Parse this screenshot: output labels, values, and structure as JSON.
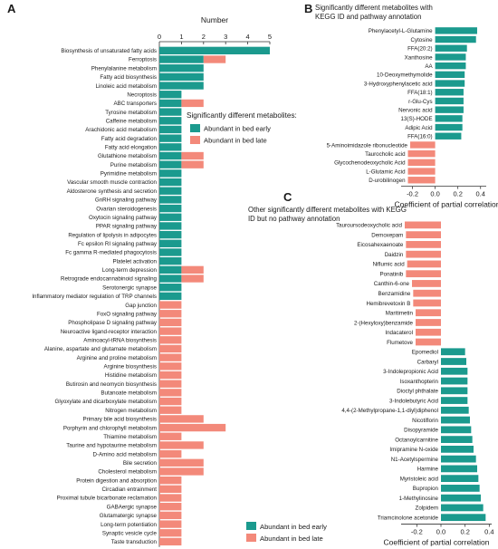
{
  "chart_data": [
    {
      "panel": "A",
      "type": "bar",
      "orientation": "horizontal",
      "stacked": true,
      "xlabel": "Number",
      "xlim": [
        0,
        5
      ],
      "xticks": [
        "0",
        "1",
        "2",
        "3",
        "4",
        "5"
      ],
      "categories": [
        "Biosynthesis of unsaturated fatty acids",
        "Ferroptosis",
        "Phenylalanine metabolism",
        "Fatty acid biosynthesis",
        "Linoleic acid metabolism",
        "Necroptosis",
        "ABC transporters",
        "Tyrosine metabolism",
        "Caffeine metabolism",
        "Arachidonic acid metabolism",
        "Fatty acid degradation",
        "Fatty acid elongation",
        "Glutathione metabolism",
        "Purine metabolism",
        "Pyrimidine metabolism",
        "Vascular smooth muscle contraction",
        "Aldosterone synthesis and secretion",
        "GnRH signaling pathway",
        "Ovarian steroidogenesis",
        "Oxytocin signaling pathway",
        "PPAR signaling pathway",
        "Regulation of lipolysis in adipocytes",
        "Fc epsilon RI signaling pathway",
        "Fc gamma R-mediated phagocytosis",
        "Platelet activation",
        "Long-term depression",
        "Retrograde endocannabinoid signaling",
        "Serotonergic synapse",
        "Inflammatory mediator regulation of TRP channels",
        "Gap junction",
        "FoxO signaling pathway",
        "Phospholipase D signaling pathway",
        "Neuroactive ligand-receptor interaction",
        "Aminoacyl-tRNA biosynthesis",
        "Alanine, aspartate and glutamate metabolism",
        "Arginine and proline metabolism",
        "Arginine biosynthesis",
        "Histidine metabolism",
        "Butirosin and neomycin biosynthesis",
        "Butanoate metabolism",
        "Glyoxylate and dicarboxylate metabolism",
        "Nitrogen metabolism",
        "Primary bile acid biosynthesis",
        "Porphyrin and chlorophyll metabolism",
        "Thiamine metabolism",
        "Taurine and hypotaurine metabolism",
        "D-Amino acid metabolism",
        "Bile secretion",
        "Cholesterol metabolism",
        "Protein digestion and absorption",
        "Circadian entrainment",
        "Proximal tubule bicarbonate reclamation",
        "GABAergic synapse",
        "Glutamatergic synapse",
        "Long-term potentiation",
        "Synaptic vesicle cycle",
        "Taste transduction"
      ],
      "series": [
        {
          "name": "Abundant in bed early",
          "values": [
            5,
            2,
            2,
            2,
            2,
            1,
            1,
            1,
            1,
            1,
            1,
            1,
            1,
            1,
            1,
            1,
            1,
            1,
            1,
            1,
            1,
            1,
            1,
            1,
            1,
            1,
            1,
            1,
            1,
            0,
            0,
            0,
            0,
            0,
            0,
            0,
            0,
            0,
            0,
            0,
            0,
            0,
            0,
            0,
            0,
            0,
            0,
            0,
            0,
            0,
            0,
            0,
            0,
            0,
            0,
            0,
            0
          ]
        },
        {
          "name": "Abundant in bed late",
          "values": [
            0,
            1,
            0,
            0,
            0,
            0,
            1,
            0,
            0,
            0,
            0,
            0,
            1,
            1,
            0,
            0,
            0,
            0,
            0,
            0,
            0,
            0,
            0,
            0,
            0,
            1,
            1,
            0,
            0,
            1,
            1,
            1,
            1,
            1,
            1,
            1,
            1,
            1,
            1,
            1,
            1,
            1,
            2,
            3,
            1,
            2,
            1,
            2,
            2,
            1,
            1,
            1,
            1,
            1,
            1,
            1,
            1
          ]
        }
      ],
      "legend": {
        "title": "Significantly different metabolites:",
        "entries": [
          "Abundant in bed early",
          "Abundant in bed late"
        ],
        "placement": "right"
      }
    },
    {
      "panel": "B",
      "type": "bar",
      "orientation": "horizontal",
      "title": "Significantly different metabolites with KEGG ID and pathway annotation",
      "xlabel": "Coefficient of partial correlation",
      "xlim": [
        -0.3,
        0.45
      ],
      "xticks": [
        "-0.2",
        "0.0",
        "0.2",
        "0.4"
      ],
      "categories": [
        "Phenylacetyl-L-Glutamine",
        "Cytosine",
        "FFA(20:2)",
        "Xanthosine",
        "AA",
        "10-Deoxymethymolide",
        "3-Hydroxyphenylacetic acid",
        "FFA(18:1)",
        "r-Glu-Cys",
        "Nervonic acid",
        "13(S)-HODE",
        "Adipic Acid",
        "FFA(16:0)",
        "5-Aminoimidazole ribonucleotide",
        "Taurocholic acid",
        "Glycochenodeoxycholic Acid",
        "L-Glutamic Acid",
        "D-urobilinogen"
      ],
      "values": [
        0.37,
        0.36,
        0.28,
        0.27,
        0.27,
        0.26,
        0.26,
        0.25,
        0.25,
        0.25,
        0.24,
        0.24,
        0.23,
        -0.22,
        -0.24,
        -0.24,
        -0.24,
        -0.24
      ],
      "colors": [
        "#1b9a8e",
        "#1b9a8e",
        "#1b9a8e",
        "#1b9a8e",
        "#1b9a8e",
        "#1b9a8e",
        "#1b9a8e",
        "#1b9a8e",
        "#1b9a8e",
        "#1b9a8e",
        "#1b9a8e",
        "#1b9a8e",
        "#1b9a8e",
        "#f3897a",
        "#f3897a",
        "#f3897a",
        "#f3897a",
        "#f3897a"
      ]
    },
    {
      "panel": "C",
      "type": "bar",
      "orientation": "horizontal",
      "title": "Other significantly different metabolites with KEGG ID but no pathway annotation",
      "xlabel": "Coefficient of partial correlation",
      "xlim": [
        -0.33,
        0.42
      ],
      "xticks": [
        "-0.2",
        "0.0",
        "0.2",
        "0.4"
      ],
      "categories": [
        "Tauroursodeoxycholic acid",
        "Demoxepam",
        "Eicosahexaenoate",
        "Daidzin",
        "Niflumic acid",
        "Ponatinib",
        "Canthin-6-one",
        "Benzamidine",
        "Hemibrevetoxin B",
        "Maritimetin",
        "2-(Hexyloxy)benzamide",
        "Indacaterol",
        "Flumetove",
        "Epomediol",
        "Carbaryl",
        "3-Indolepropionic Acid",
        "Isoxanthopterin",
        "Dioctyl phthalate",
        "3-Indolebutyric Acid",
        "4,4-(2-Methylpropane-1,1-diyl)diphenol",
        "Nicotiflorin",
        "Disopyramide",
        "Octanoylcarnitine",
        "Imipramine N-oxide",
        "N1-Acetylspermine",
        "Harmine",
        "Myristoleic acid",
        "Bupropion",
        "1-Methylinosine",
        "Zolpidem",
        "Triamcinolone acetonide"
      ],
      "values": [
        -0.3,
        -0.29,
        -0.29,
        -0.29,
        -0.28,
        -0.29,
        -0.24,
        -0.23,
        -0.23,
        -0.21,
        -0.21,
        -0.21,
        -0.21,
        0.2,
        0.21,
        0.22,
        0.22,
        0.22,
        0.22,
        0.23,
        0.24,
        0.25,
        0.26,
        0.27,
        0.29,
        0.3,
        0.31,
        0.32,
        0.33,
        0.35,
        0.37
      ],
      "colors": [
        "#f3897a",
        "#f3897a",
        "#f3897a",
        "#f3897a",
        "#f3897a",
        "#f3897a",
        "#f3897a",
        "#f3897a",
        "#f3897a",
        "#f3897a",
        "#f3897a",
        "#f3897a",
        "#f3897a",
        "#1b9a8e",
        "#1b9a8e",
        "#1b9a8e",
        "#1b9a8e",
        "#1b9a8e",
        "#1b9a8e",
        "#1b9a8e",
        "#1b9a8e",
        "#1b9a8e",
        "#1b9a8e",
        "#1b9a8e",
        "#1b9a8e",
        "#1b9a8e",
        "#1b9a8e",
        "#1b9a8e",
        "#1b9a8e",
        "#1b9a8e",
        "#1b9a8e"
      ],
      "legend": {
        "entries": [
          "Abundant in bed early",
          "Abundant in bed late"
        ],
        "placement": "bottom-left"
      }
    }
  ],
  "panel_letters": {
    "a": "A",
    "b": "B",
    "c": "C"
  },
  "colors": {
    "early": "#1b9a8e",
    "late": "#f3897a"
  }
}
